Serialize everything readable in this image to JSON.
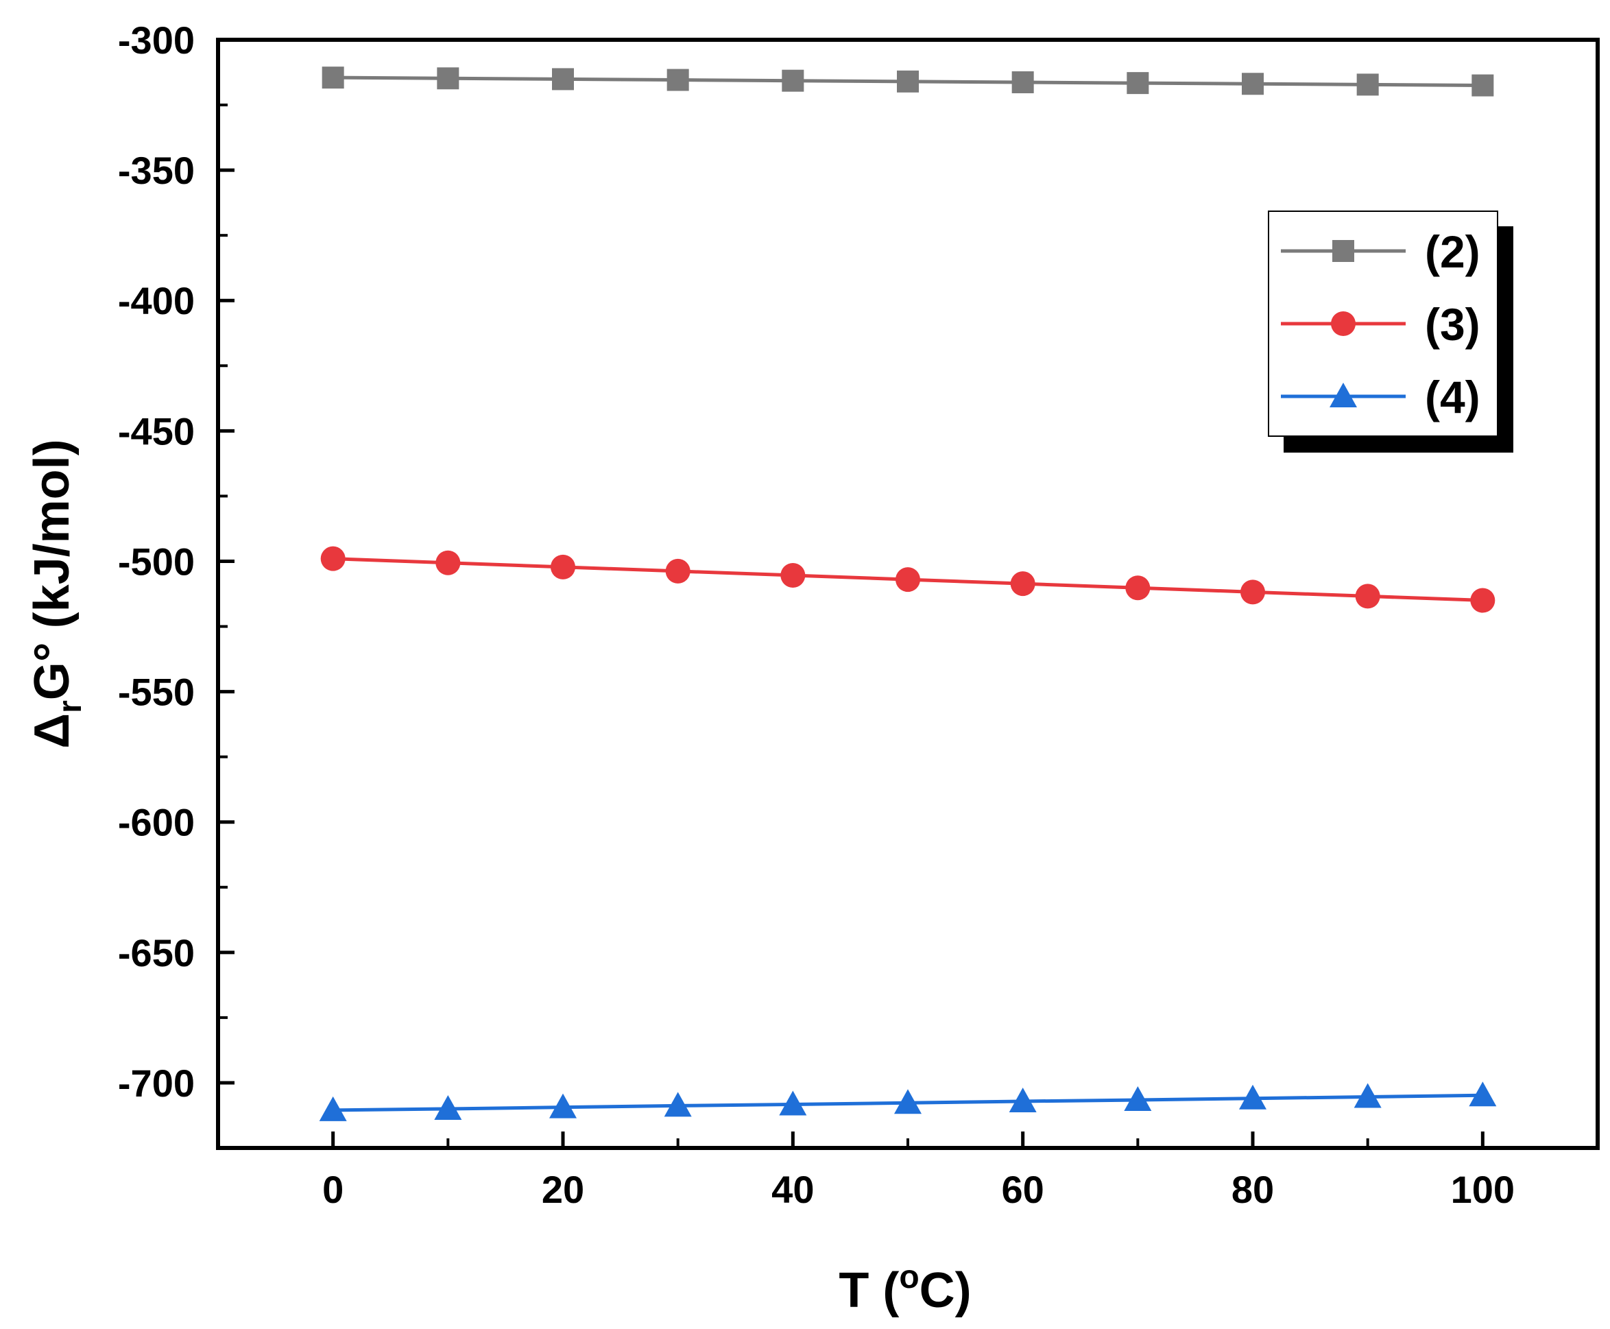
{
  "chart_data": {
    "type": "line",
    "title": "",
    "xlabel": "T (",
    "xlabel_sup": "o",
    "xlabel_tail": "C)",
    "ylabel_delta": "Δ",
    "ylabel_sub": "r",
    "ylabel_main": "G° (kJ/mol)",
    "xlim": [
      -10,
      110
    ],
    "ylim": [
      -725,
      -300
    ],
    "xticks": [
      0,
      20,
      40,
      60,
      80,
      100
    ],
    "xticks_minor": [
      10,
      30,
      50,
      70,
      90
    ],
    "yticks": [
      -300,
      -350,
      -400,
      -450,
      -500,
      -550,
      -600,
      -650,
      -700
    ],
    "x": [
      0,
      10,
      20,
      30,
      40,
      50,
      60,
      70,
      80,
      90,
      100
    ],
    "series": [
      {
        "name": "(2)",
        "color": "#7a7a7a",
        "marker": "square",
        "values": [
          -314.5,
          -314.8,
          -315.1,
          -315.4,
          -315.7,
          -316.0,
          -316.3,
          -316.6,
          -316.9,
          -317.2,
          -317.5
        ]
      },
      {
        "name": "(3)",
        "color": "#e8383d",
        "marker": "circle",
        "values": [
          -499.0,
          -500.6,
          -502.2,
          -503.8,
          -505.4,
          -507.0,
          -508.6,
          -510.2,
          -511.8,
          -513.4,
          -515.0
        ]
      },
      {
        "name": "(4)",
        "color": "#1f6fd8",
        "marker": "triangle",
        "values": [
          -710.5,
          -710.0,
          -709.4,
          -708.8,
          -708.3,
          -707.7,
          -707.1,
          -706.6,
          -706.0,
          -705.4,
          -704.8
        ]
      }
    ],
    "legend_position": "top-right"
  }
}
